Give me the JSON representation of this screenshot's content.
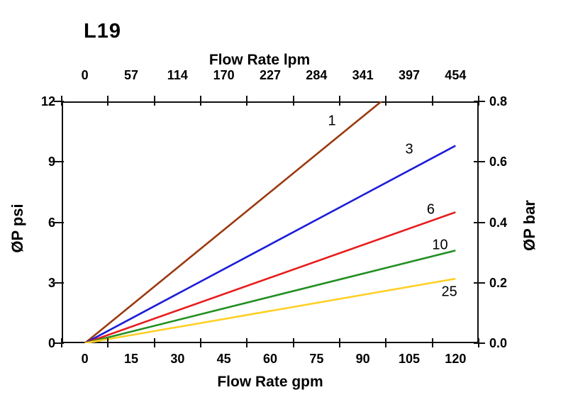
{
  "title": "L19",
  "chart_data": {
    "type": "line",
    "title": "L19",
    "x_axis": {
      "label": "Flow Rate gpm",
      "range": [
        0,
        120
      ],
      "ticks": [
        "0",
        "15",
        "30",
        "45",
        "60",
        "75",
        "90",
        "105",
        "120"
      ]
    },
    "x_axis_top": {
      "label": "Flow Rate lpm",
      "range": [
        0,
        454
      ],
      "ticks": [
        "0",
        "57",
        "114",
        "170",
        "227",
        "284",
        "341",
        "397",
        "454"
      ]
    },
    "y_axis": {
      "label": "ØP psi",
      "range": [
        0,
        12
      ],
      "ticks": [
        "12",
        "9",
        "6",
        "3",
        "0"
      ]
    },
    "y_axis_right": {
      "label": "ØP bar",
      "range": [
        0.0,
        0.8
      ],
      "ticks": [
        "0.8",
        "0.6",
        "0.4",
        "0.2",
        "0.0"
      ]
    },
    "grid": false,
    "legend": "inline-labels",
    "series": [
      {
        "name": "1",
        "color": "#9a3a10",
        "points": [
          [
            0,
            0
          ],
          [
            96,
            12
          ]
        ],
        "label_at": [
          80,
          11.0
        ]
      },
      {
        "name": "3",
        "color": "#1c1cd9",
        "points": [
          [
            0,
            0
          ],
          [
            120,
            9.8
          ]
        ],
        "label_at": [
          105,
          9.6
        ]
      },
      {
        "name": "6",
        "color": "#e71c1c",
        "points": [
          [
            0,
            0
          ],
          [
            120,
            6.5
          ]
        ],
        "label_at": [
          112,
          6.6
        ]
      },
      {
        "name": "10",
        "color": "#229022",
        "points": [
          [
            0,
            0
          ],
          [
            120,
            4.6
          ]
        ],
        "label_at": [
          115,
          4.85
        ]
      },
      {
        "name": "25",
        "color": "#ffd026",
        "points": [
          [
            0,
            0
          ],
          [
            120,
            3.2
          ]
        ],
        "label_at": [
          118,
          2.55
        ]
      }
    ]
  }
}
